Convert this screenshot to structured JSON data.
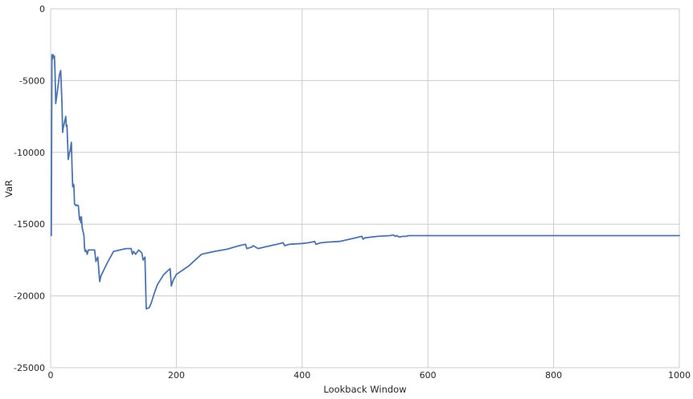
{
  "chart_data": {
    "type": "line",
    "title": "",
    "xlabel": "Lookback Window",
    "ylabel": "VaR",
    "xlim": [
      0,
      1000
    ],
    "ylim": [
      -25000,
      0
    ],
    "xticks": [
      0,
      200,
      400,
      600,
      800,
      1000
    ],
    "yticks": [
      0,
      -5000,
      -10000,
      -15000,
      -20000,
      -25000
    ],
    "grid": true,
    "line_color": "#4c72b0",
    "series": [
      {
        "name": "",
        "x": [
          1,
          2,
          3,
          4,
          5,
          6,
          7,
          8,
          10,
          12,
          14,
          16,
          18,
          19,
          20,
          22,
          24,
          25,
          26,
          28,
          30,
          31,
          32,
          33,
          34,
          35,
          36,
          37,
          38,
          40,
          41,
          42,
          44,
          46,
          47,
          48,
          49,
          50,
          51,
          52,
          53,
          54,
          55,
          56,
          57,
          58,
          60,
          65,
          70,
          72,
          75,
          78,
          80,
          90,
          100,
          110,
          120,
          128,
          130,
          132,
          135,
          140,
          145,
          147,
          150,
          152,
          155,
          157,
          160,
          165,
          170,
          180,
          190,
          192,
          195,
          200,
          220,
          240,
          260,
          280,
          300,
          310,
          312,
          320,
          322,
          330,
          340,
          350,
          360,
          370,
          372,
          380,
          400,
          410,
          420,
          422,
          430,
          440,
          460,
          480,
          495,
          497,
          500,
          520,
          540,
          545,
          548,
          550,
          555,
          560,
          565,
          570,
          600,
          700,
          800,
          900,
          1000
        ],
        "values": [
          -15800,
          -3200,
          -3500,
          -3200,
          -3400,
          -3300,
          -4500,
          -6600,
          -6000,
          -5300,
          -4600,
          -4300,
          -6600,
          -8600,
          -8300,
          -7900,
          -7500,
          -8200,
          -8100,
          -10500,
          -10000,
          -9900,
          -9600,
          -9300,
          -11000,
          -12400,
          -12200,
          -12300,
          -13600,
          -13700,
          -13650,
          -13700,
          -13700,
          -14700,
          -14500,
          -14900,
          -14500,
          -15200,
          -15400,
          -15600,
          -15800,
          -16700,
          -16900,
          -16800,
          -16900,
          -17100,
          -16800,
          -16800,
          -16800,
          -17600,
          -17300,
          -19000,
          -18600,
          -17700,
          -16900,
          -16800,
          -16700,
          -16700,
          -17100,
          -16900,
          -17100,
          -16800,
          -17000,
          -17500,
          -17300,
          -20900,
          -20850,
          -20800,
          -20500,
          -19800,
          -19200,
          -18500,
          -18100,
          -19300,
          -18900,
          -18500,
          -17900,
          -17100,
          -16900,
          -16750,
          -16500,
          -16400,
          -16700,
          -16600,
          -16500,
          -16700,
          -16600,
          -16500,
          -16400,
          -16300,
          -16500,
          -16400,
          -16350,
          -16300,
          -16200,
          -16400,
          -16300,
          -16250,
          -16200,
          -16000,
          -15850,
          -16050,
          -15950,
          -15850,
          -15800,
          -15750,
          -15850,
          -15800,
          -15900,
          -15850,
          -15850,
          -15800,
          -15800,
          -15800,
          -15800,
          -15800,
          -15800
        ]
      }
    ]
  }
}
